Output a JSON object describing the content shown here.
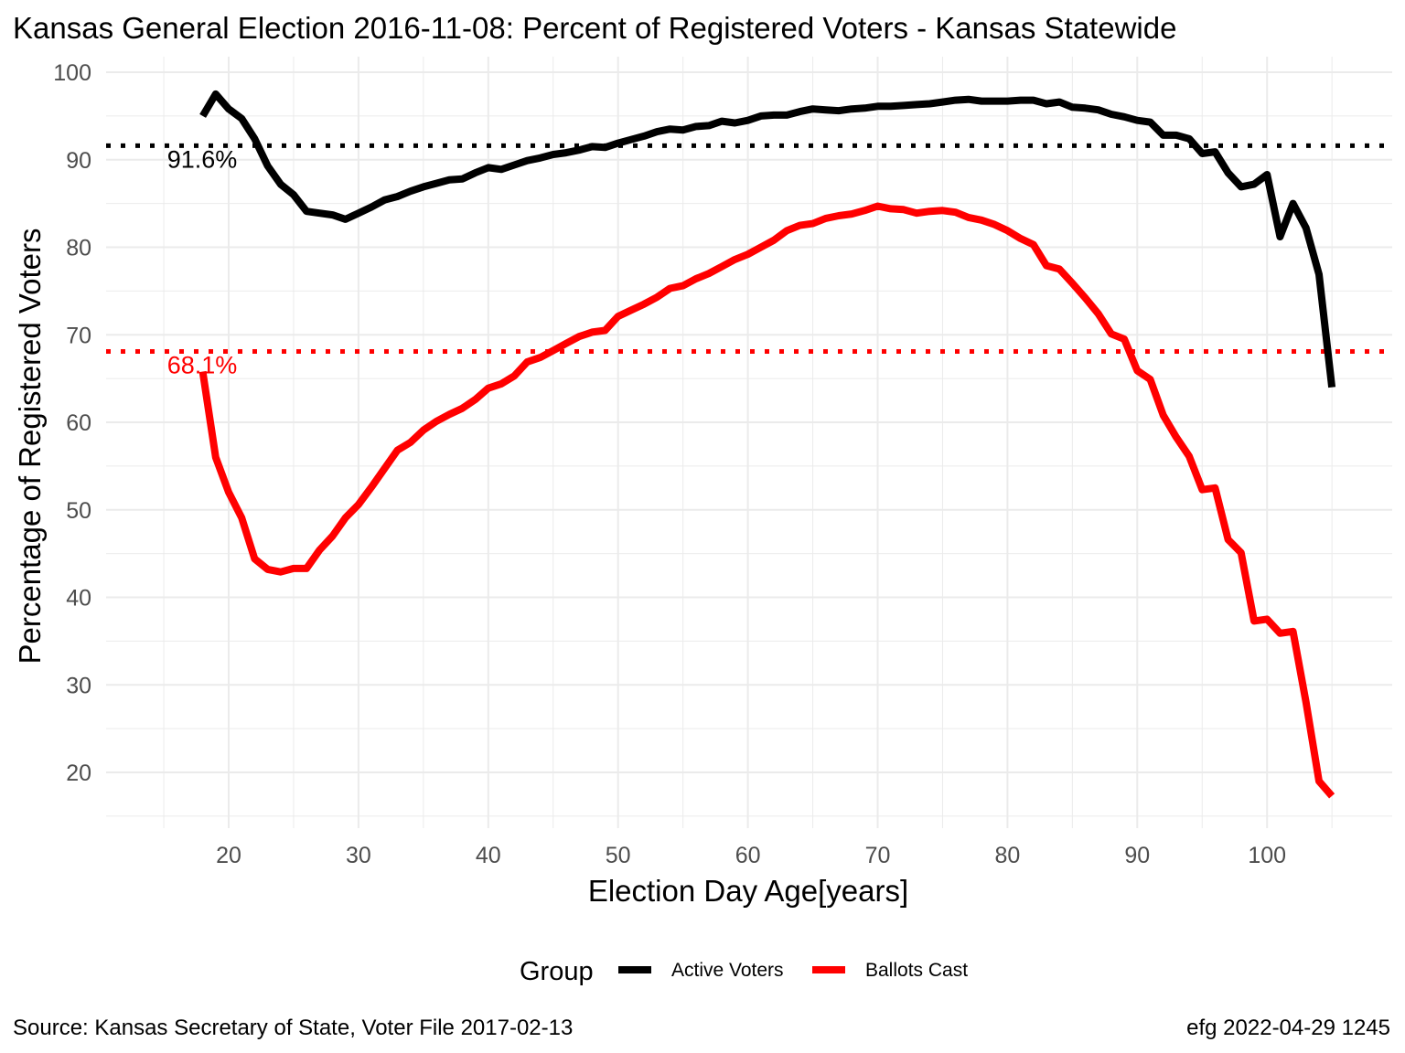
{
  "colors": {
    "active": "#000000",
    "ballots": "#ff0000",
    "grid": "#ebebeb",
    "tick_text": "#4d4d4d"
  },
  "chart_data": {
    "type": "line",
    "title": "Kansas General Election 2016-11-08:  Percent of Registered Voters - Kansas Statewide",
    "xlabel": "Election Day Age[years]",
    "ylabel": "Percentage of Registered Voters",
    "xlim": [
      10.5,
      109
    ],
    "ylim": [
      15,
      101
    ],
    "x_ticks": [
      20,
      30,
      40,
      50,
      60,
      70,
      80,
      90,
      100
    ],
    "y_ticks": [
      20,
      30,
      40,
      50,
      60,
      70,
      80,
      90,
      100
    ],
    "grid": true,
    "legend": {
      "title": "Group",
      "position": "bottom",
      "entries": [
        "Active Voters",
        "Ballots Cast"
      ]
    },
    "series": [
      {
        "name": "Active Voters",
        "color": "#000000",
        "x": [
          18,
          19,
          20,
          21,
          22,
          23,
          24,
          25,
          26,
          27,
          28,
          29,
          30,
          31,
          32,
          33,
          34,
          35,
          36,
          37,
          38,
          39,
          40,
          41,
          42,
          43,
          44,
          45,
          46,
          47,
          48,
          49,
          50,
          51,
          52,
          53,
          54,
          55,
          56,
          57,
          58,
          59,
          60,
          61,
          62,
          63,
          64,
          65,
          66,
          67,
          68,
          69,
          70,
          71,
          72,
          73,
          74,
          75,
          76,
          77,
          78,
          79,
          80,
          81,
          82,
          83,
          84,
          85,
          86,
          87,
          88,
          89,
          90,
          91,
          92,
          93,
          94,
          95,
          96,
          97,
          98,
          99,
          100,
          101,
          102,
          103,
          104,
          105
        ],
        "values": [
          95.0,
          97.5,
          95.8,
          94.7,
          92.4,
          89.3,
          87.2,
          86.0,
          84.1,
          83.9,
          83.7,
          83.2,
          83.9,
          84.6,
          85.4,
          85.8,
          86.4,
          86.9,
          87.3,
          87.7,
          87.8,
          88.5,
          89.1,
          88.9,
          89.4,
          89.9,
          90.2,
          90.6,
          90.8,
          91.1,
          91.5,
          91.4,
          91.9,
          92.3,
          92.7,
          93.2,
          93.5,
          93.4,
          93.8,
          93.9,
          94.4,
          94.2,
          94.5,
          95.0,
          95.1,
          95.1,
          95.5,
          95.8,
          95.7,
          95.6,
          95.8,
          95.9,
          96.1,
          96.1,
          96.2,
          96.3,
          96.4,
          96.6,
          96.8,
          96.9,
          96.7,
          96.7,
          96.7,
          96.8,
          96.8,
          96.4,
          96.6,
          96.0,
          95.9,
          95.7,
          95.2,
          94.9,
          94.5,
          94.3,
          92.8,
          92.8,
          92.4,
          90.7,
          90.9,
          88.5,
          86.9,
          87.2,
          88.3,
          81.2,
          85.0,
          82.2,
          76.9,
          64.0
        ]
      },
      {
        "name": "Ballots Cast",
        "color": "#ff0000",
        "x": [
          18,
          19,
          20,
          21,
          22,
          23,
          24,
          25,
          26,
          27,
          28,
          29,
          30,
          31,
          32,
          33,
          34,
          35,
          36,
          37,
          38,
          39,
          40,
          41,
          42,
          43,
          44,
          45,
          46,
          47,
          48,
          49,
          50,
          51,
          52,
          53,
          54,
          55,
          56,
          57,
          58,
          59,
          60,
          61,
          62,
          63,
          64,
          65,
          66,
          67,
          68,
          69,
          70,
          71,
          72,
          73,
          74,
          75,
          76,
          77,
          78,
          79,
          80,
          81,
          82,
          83,
          84,
          85,
          86,
          87,
          88,
          89,
          90,
          91,
          92,
          93,
          94,
          95,
          96,
          97,
          98,
          99,
          100,
          101,
          102,
          103,
          104,
          105
        ],
        "values": [
          65.8,
          56.0,
          52.0,
          49.1,
          44.4,
          43.2,
          42.9,
          43.3,
          43.3,
          45.4,
          47.0,
          49.1,
          50.6,
          52.6,
          54.7,
          56.8,
          57.7,
          59.1,
          60.1,
          60.9,
          61.6,
          62.6,
          63.9,
          64.4,
          65.3,
          66.9,
          67.4,
          68.2,
          69.0,
          69.8,
          70.3,
          70.5,
          72.1,
          72.8,
          73.5,
          74.3,
          75.3,
          75.6,
          76.4,
          77.0,
          77.8,
          78.6,
          79.2,
          80.0,
          80.8,
          81.9,
          82.5,
          82.7,
          83.3,
          83.6,
          83.8,
          84.2,
          84.7,
          84.4,
          84.3,
          83.9,
          84.1,
          84.2,
          84.0,
          83.4,
          83.1,
          82.6,
          81.9,
          81.0,
          80.3,
          77.9,
          77.5,
          75.9,
          74.2,
          72.4,
          70.1,
          69.5,
          65.9,
          64.9,
          60.8,
          58.3,
          56.1,
          52.3,
          52.5,
          46.6,
          45.1,
          37.3,
          37.5,
          35.9,
          36.1,
          28.0,
          19.0,
          17.3
        ]
      }
    ],
    "reference_lines": [
      {
        "series": "Active Voters",
        "value": 91.6,
        "label": "91.6%",
        "color": "#000000"
      },
      {
        "series": "Ballots Cast",
        "value": 68.1,
        "label": "68.1%",
        "color": "#ff0000"
      }
    ]
  },
  "footer": {
    "source": "Source:  Kansas Secretary of State, Voter File  2017-02-13",
    "credit": "efg 2022-04-29 1245"
  }
}
